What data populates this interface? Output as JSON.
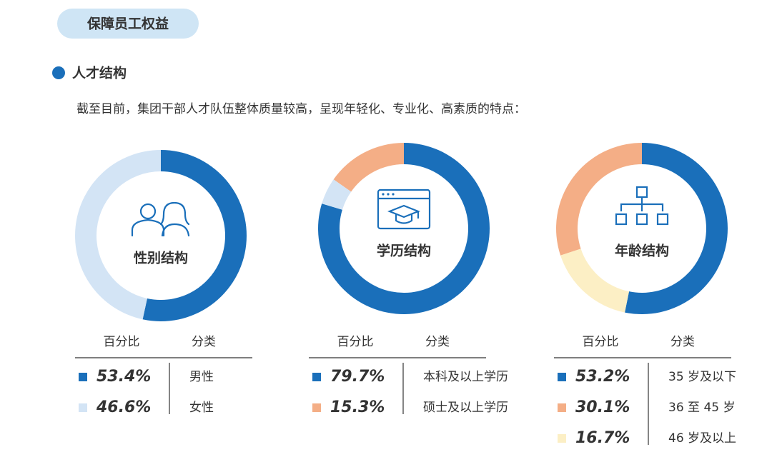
{
  "badge": "保障员工权益",
  "section_title": "人才结构",
  "description": "截至目前，集团干部人才队伍整体质量较高，呈现年轻化、专业化、高素质的特点：",
  "chart_data": [
    {
      "type": "pie",
      "title": "性别结构",
      "table_headers": [
        "百分比",
        "分类"
      ],
      "categories": [
        "男性",
        "女性"
      ],
      "values": [
        53.4,
        46.6
      ],
      "value_labels": [
        "53.4%",
        "46.6%"
      ],
      "colors": [
        "#1a6fba",
        "#d3e4f5"
      ]
    },
    {
      "type": "pie",
      "title": "学历结构",
      "table_headers": [
        "百分比",
        "分类"
      ],
      "categories": [
        "本科及以上学历",
        "硕士及以上学历",
        null
      ],
      "values": [
        79.7,
        15.3,
        5.0
      ],
      "value_labels": [
        "79.7%",
        "15.3%",
        null
      ],
      "colors": [
        "#1a6fba",
        "#f4ae86",
        "#d3e4f5"
      ]
    },
    {
      "type": "pie",
      "title": "年龄结构",
      "table_headers": [
        "百分比",
        "分类"
      ],
      "categories": [
        "35 岁及以下",
        "36 至 45 岁",
        "46 岁及以上"
      ],
      "values": [
        53.2,
        30.1,
        16.7
      ],
      "value_labels": [
        "53.2%",
        "30.1%",
        "16.7%"
      ],
      "colors": [
        "#1a6fba",
        "#f4ae86",
        "#fcefc5"
      ]
    }
  ]
}
